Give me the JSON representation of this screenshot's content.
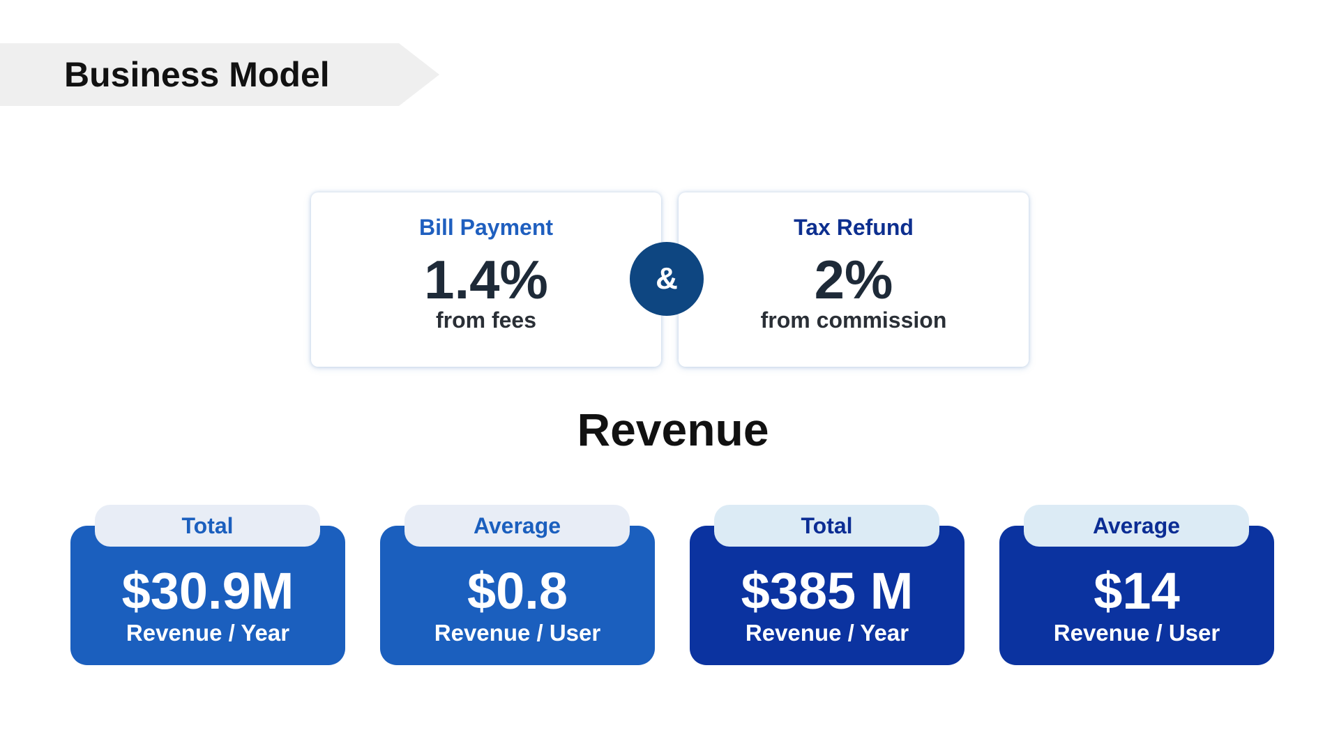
{
  "header": {
    "title": "Business Model"
  },
  "models": [
    {
      "label": "Bill Payment",
      "value": "1.4%",
      "subtitle": "from fees"
    },
    {
      "label": "Tax Refund",
      "value": "2%",
      "subtitle": "from commission"
    }
  ],
  "connector": "&",
  "section_title": "Revenue",
  "revenue_cards": [
    {
      "tab": "Total",
      "value": "$30.9M",
      "subtitle": "Revenue / Year"
    },
    {
      "tab": "Average",
      "value": "$0.8",
      "subtitle": "Revenue / User"
    },
    {
      "tab": "Total",
      "value": "$385 M",
      "subtitle": "Revenue / Year"
    },
    {
      "tab": "Average",
      "value": "$14",
      "subtitle": "Revenue / User"
    }
  ],
  "colors": {
    "banner": "#efefef",
    "bill_label": "#1f5fbf",
    "tax_label": "#0d2f8f",
    "connector_circle": "#0e4681",
    "card_light": "#1b5fbe",
    "card_dark": "#0b33a0",
    "tab_light": "#e8edf6",
    "tab_dark": "#dcebf5"
  }
}
